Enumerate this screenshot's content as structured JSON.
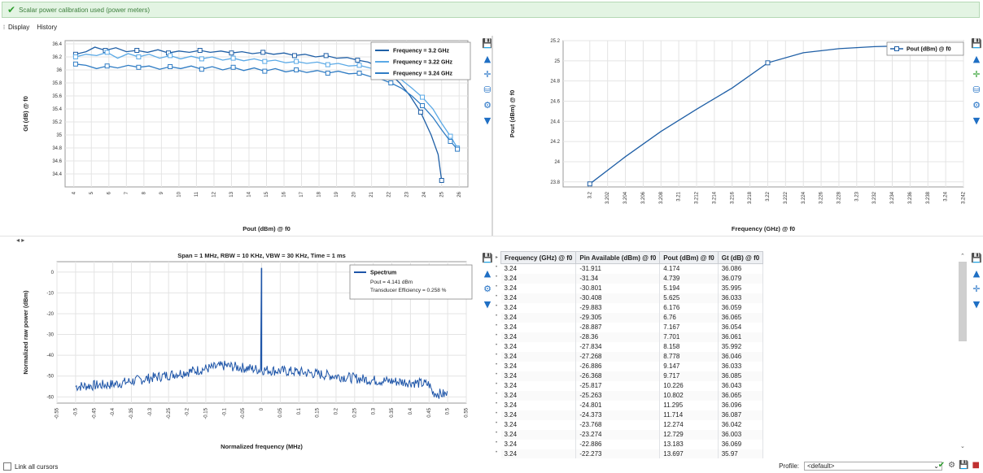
{
  "banner": {
    "icon": "check-icon",
    "text": "Scalar power calibration used (power meters)"
  },
  "menu": {
    "items": [
      "Display",
      "History"
    ]
  },
  "toolbar_icons": [
    "save-icon",
    "mountain-icon",
    "cursor-cross-icon",
    "database-icon",
    "gear-icon",
    "filter-icon"
  ],
  "colors": {
    "series1": "#1f5fa6",
    "series2": "#5aa9e6",
    "series3": "#2f7cc4",
    "spectrum": "#1e55a8",
    "banner_text": "#3b7d3b"
  },
  "chart_data": [
    {
      "type": "line",
      "xlabel": "Pout (dBm) @ f0",
      "ylabel": "Gt (dB) @ f0",
      "xlim": [
        3.5,
        26.5
      ],
      "ylim": [
        34.2,
        36.45
      ],
      "xticks": [
        "4",
        "5",
        "6",
        "7",
        "8",
        "9",
        "10",
        "11",
        "12",
        "13",
        "14",
        "15",
        "16",
        "17",
        "18",
        "19",
        "20",
        "21",
        "22",
        "23",
        "24",
        "25",
        "26"
      ],
      "yticks": [
        "34.4",
        "34.6",
        "34.8",
        "35",
        "35.2",
        "35.4",
        "35.6",
        "35.8",
        "36",
        "36.2",
        "36.4"
      ],
      "legend_position": "top-right",
      "series": [
        {
          "name": "Frequency = 3.2 GHz",
          "points": [
            [
              4.1,
              36.24
            ],
            [
              4.7,
              36.28
            ],
            [
              5.2,
              36.35
            ],
            [
              5.8,
              36.3
            ],
            [
              6.4,
              36.34
            ],
            [
              7.0,
              36.28
            ],
            [
              7.6,
              36.3
            ],
            [
              8.2,
              36.27
            ],
            [
              8.8,
              36.31
            ],
            [
              9.4,
              36.26
            ],
            [
              10.0,
              36.29
            ],
            [
              10.6,
              36.27
            ],
            [
              11.2,
              36.3
            ],
            [
              11.8,
              36.27
            ],
            [
              12.4,
              36.29
            ],
            [
              13.0,
              36.26
            ],
            [
              13.6,
              36.28
            ],
            [
              14.2,
              36.25
            ],
            [
              14.8,
              36.27
            ],
            [
              15.4,
              36.24
            ],
            [
              16.0,
              36.26
            ],
            [
              16.6,
              36.22
            ],
            [
              17.2,
              36.24
            ],
            [
              17.8,
              36.2
            ],
            [
              18.4,
              36.22
            ],
            [
              19.0,
              36.18
            ],
            [
              19.6,
              36.19
            ],
            [
              20.2,
              36.15
            ],
            [
              20.8,
              36.12
            ],
            [
              21.4,
              36.05
            ],
            [
              22.0,
              35.95
            ],
            [
              22.6,
              35.8
            ],
            [
              23.2,
              35.6
            ],
            [
              23.8,
              35.35
            ],
            [
              24.4,
              35.0
            ],
            [
              24.8,
              34.7
            ],
            [
              25.0,
              34.3
            ]
          ]
        },
        {
          "name": "Frequency = 3.22 GHz",
          "points": [
            [
              4.1,
              36.2
            ],
            [
              4.7,
              36.24
            ],
            [
              5.3,
              36.22
            ],
            [
              5.9,
              36.27
            ],
            [
              6.5,
              36.18
            ],
            [
              7.1,
              36.25
            ],
            [
              7.7,
              36.2
            ],
            [
              8.3,
              36.24
            ],
            [
              8.9,
              36.18
            ],
            [
              9.5,
              36.22
            ],
            [
              10.1,
              36.17
            ],
            [
              10.7,
              36.21
            ],
            [
              11.3,
              36.17
            ],
            [
              11.9,
              36.2
            ],
            [
              12.5,
              36.15
            ],
            [
              13.1,
              36.18
            ],
            [
              13.7,
              36.14
            ],
            [
              14.3,
              36.17
            ],
            [
              14.9,
              36.13
            ],
            [
              15.5,
              36.15
            ],
            [
              16.1,
              36.11
            ],
            [
              16.7,
              36.13
            ],
            [
              17.3,
              36.1
            ],
            [
              17.9,
              36.12
            ],
            [
              18.5,
              36.08
            ],
            [
              19.1,
              36.1
            ],
            [
              19.7,
              36.06
            ],
            [
              20.3,
              36.07
            ],
            [
              20.9,
              36.03
            ],
            [
              21.5,
              36.0
            ],
            [
              22.1,
              35.93
            ],
            [
              22.7,
              35.85
            ],
            [
              23.3,
              35.72
            ],
            [
              23.9,
              35.58
            ],
            [
              24.5,
              35.4
            ],
            [
              25.0,
              35.18
            ],
            [
              25.5,
              34.98
            ],
            [
              25.9,
              34.8
            ]
          ]
        },
        {
          "name": "Frequency = 3.24 GHz",
          "points": [
            [
              4.1,
              36.09
            ],
            [
              4.7,
              36.07
            ],
            [
              5.3,
              36.02
            ],
            [
              5.9,
              36.06
            ],
            [
              6.5,
              36.03
            ],
            [
              7.1,
              36.07
            ],
            [
              7.7,
              36.04
            ],
            [
              8.3,
              36.06
            ],
            [
              8.9,
              36.01
            ],
            [
              9.5,
              36.05
            ],
            [
              10.1,
              36.02
            ],
            [
              10.7,
              36.06
            ],
            [
              11.3,
              36.01
            ],
            [
              11.9,
              36.05
            ],
            [
              12.5,
              36.0
            ],
            [
              13.1,
              36.04
            ],
            [
              13.7,
              35.99
            ],
            [
              14.3,
              36.03
            ],
            [
              14.9,
              35.98
            ],
            [
              15.5,
              36.02
            ],
            [
              16.1,
              35.97
            ],
            [
              16.7,
              36.0
            ],
            [
              17.3,
              35.96
            ],
            [
              17.9,
              35.99
            ],
            [
              18.5,
              35.95
            ],
            [
              19.1,
              35.98
            ],
            [
              19.7,
              35.94
            ],
            [
              20.3,
              35.95
            ],
            [
              20.9,
              35.9
            ],
            [
              21.5,
              35.86
            ],
            [
              22.1,
              35.8
            ],
            [
              22.7,
              35.72
            ],
            [
              23.3,
              35.6
            ],
            [
              23.9,
              35.45
            ],
            [
              24.5,
              35.27
            ],
            [
              25.0,
              35.08
            ],
            [
              25.5,
              34.9
            ],
            [
              25.9,
              34.78
            ]
          ]
        }
      ]
    },
    {
      "type": "line",
      "xlabel": "Frequency (GHz) @ f0",
      "ylabel": "Pout (dBm) @ f0",
      "xlim": [
        3.197,
        3.242
      ],
      "ylim": [
        23.75,
        25.2
      ],
      "xticks": [
        "3.2",
        "3.202",
        "3.204",
        "3.206",
        "3.208",
        "3.21",
        "3.212",
        "3.214",
        "3.216",
        "3.218",
        "3.22",
        "3.222",
        "3.224",
        "3.226",
        "3.228",
        "3.23",
        "3.232",
        "3.234",
        "3.236",
        "3.238",
        "3.24",
        "3.242"
      ],
      "yticks": [
        "23.8",
        "24",
        "24.2",
        "24.4",
        "24.6",
        "24.8",
        "25",
        "25.2"
      ],
      "legend_position": "top-right",
      "series": [
        {
          "name": "Pout (dBm) @ f0",
          "points": [
            [
              3.2,
              23.78
            ],
            [
              3.204,
              24.05
            ],
            [
              3.208,
              24.3
            ],
            [
              3.212,
              24.52
            ],
            [
              3.216,
              24.73
            ],
            [
              3.22,
              24.98
            ],
            [
              3.224,
              25.08
            ],
            [
              3.228,
              25.12
            ],
            [
              3.232,
              25.14
            ],
            [
              3.236,
              25.15
            ],
            [
              3.24,
              25.15
            ]
          ],
          "markers_at": [
            3.2,
            3.22,
            3.24
          ]
        }
      ]
    },
    {
      "type": "line",
      "title": "Span = 1 MHz, RBW = 10 KHz, VBW = 30 KHz, Time = 1 ms",
      "xlabel": "Normalized frequency (MHz)",
      "ylabel": "Normalized raw power (dBm)",
      "xlim": [
        -0.55,
        0.55
      ],
      "ylim": [
        -63,
        5
      ],
      "xticks": [
        "-0.55",
        "-0.5",
        "-0.45",
        "-0.4",
        "-0.35",
        "-0.3",
        "-0.25",
        "-0.2",
        "-0.15",
        "-0.1",
        "-0.05",
        "0",
        "0.05",
        "0.1",
        "0.15",
        "0.2",
        "0.25",
        "0.3",
        "0.35",
        "0.4",
        "0.45",
        "0.5",
        "0.55"
      ],
      "yticks": [
        "0",
        "-10",
        "-20",
        "-30",
        "-40",
        "-50",
        "-60"
      ],
      "legend_position": "top-right",
      "legend_lines": [
        "Pout = 4.141 dBm",
        "Transducer Efficiency = 0.258 %"
      ],
      "series": [
        {
          "name": "Spectrum",
          "envelope": [
            [
              -0.5,
              -55
            ],
            [
              -0.4,
              -54
            ],
            [
              -0.3,
              -51
            ],
            [
              -0.2,
              -48
            ],
            [
              -0.15,
              -46.5
            ],
            [
              -0.1,
              -45
            ],
            [
              -0.05,
              -46
            ],
            [
              0,
              -47
            ],
            [
              0.05,
              -47.5
            ],
            [
              0.1,
              -48
            ],
            [
              0.2,
              -50
            ],
            [
              0.3,
              -52
            ],
            [
              0.4,
              -53
            ],
            [
              0.45,
              -54
            ],
            [
              0.46,
              -58
            ],
            [
              0.5,
              -59
            ]
          ],
          "peak": [
            0,
            2
          ]
        }
      ]
    }
  ],
  "table": {
    "columns": [
      "Frequency (GHz) @ f0",
      "Pin Available (dBm) @ f0",
      "Pout (dBm) @ f0",
      "Gt (dB) @ f0"
    ],
    "rows": [
      [
        "3.24",
        "-31.911",
        "4.174",
        "36.086"
      ],
      [
        "3.24",
        "-31.34",
        "4.739",
        "36.079"
      ],
      [
        "3.24",
        "-30.801",
        "5.194",
        "35.995"
      ],
      [
        "3.24",
        "-30.408",
        "5.625",
        "36.033"
      ],
      [
        "3.24",
        "-29.883",
        "6.176",
        "36.059"
      ],
      [
        "3.24",
        "-29.305",
        "6.76",
        "36.065"
      ],
      [
        "3.24",
        "-28.887",
        "7.167",
        "36.054"
      ],
      [
        "3.24",
        "-28.36",
        "7.701",
        "36.061"
      ],
      [
        "3.24",
        "-27.834",
        "8.158",
        "35.992"
      ],
      [
        "3.24",
        "-27.268",
        "8.778",
        "36.046"
      ],
      [
        "3.24",
        "-26.886",
        "9.147",
        "36.033"
      ],
      [
        "3.24",
        "-26.368",
        "9.717",
        "36.085"
      ],
      [
        "3.24",
        "-25.817",
        "10.226",
        "36.043"
      ],
      [
        "3.24",
        "-25.263",
        "10.802",
        "36.065"
      ],
      [
        "3.24",
        "-24.801",
        "11.295",
        "36.096"
      ],
      [
        "3.24",
        "-24.373",
        "11.714",
        "36.087"
      ],
      [
        "3.24",
        "-23.768",
        "12.274",
        "36.042"
      ],
      [
        "3.24",
        "-23.274",
        "12.729",
        "36.003"
      ],
      [
        "3.24",
        "-22.886",
        "13.183",
        "36.069"
      ],
      [
        "3.24",
        "-22.273",
        "13.697",
        "35.97"
      ]
    ]
  },
  "footer": {
    "link_cursors_label": "Link all cursors",
    "profile_label": "Profile:",
    "profile_value": "<default>"
  }
}
